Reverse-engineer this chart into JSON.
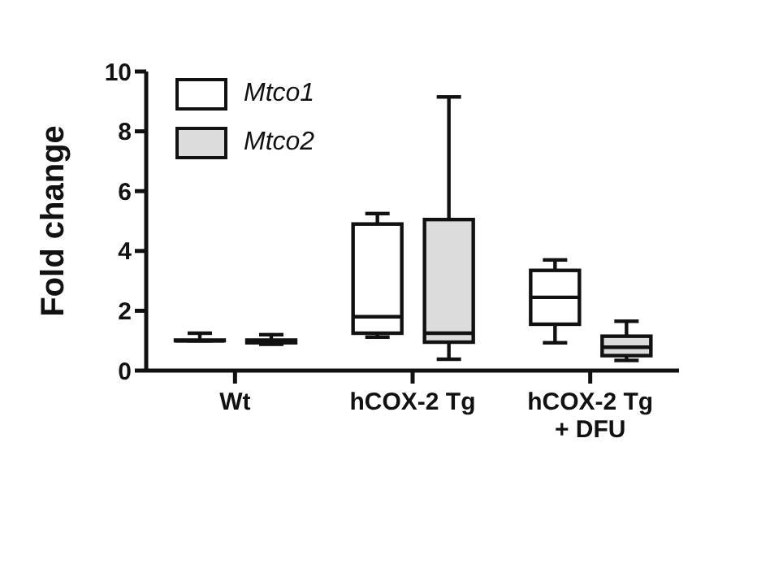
{
  "chart_data": {
    "type": "box",
    "ylabel": "Fold change",
    "categories": [
      "Wt",
      "hCOX-2 Tg",
      "hCOX-2 Tg\n+ DFU"
    ],
    "ylim": [
      0,
      10
    ],
    "yticks": [
      0,
      2,
      4,
      6,
      8,
      10
    ],
    "legend": "top left",
    "grid": false,
    "series": [
      {
        "name": "Mtco1",
        "color": "#ffffff",
        "boxes": [
          {
            "low": 1.0,
            "q1": 1.0,
            "median": 1.0,
            "q3": 1.02,
            "high": 1.25
          },
          {
            "low": 1.12,
            "q1": 1.25,
            "median": 1.8,
            "q3": 4.9,
            "high": 5.25
          },
          {
            "low": 0.93,
            "q1": 1.55,
            "median": 2.45,
            "q3": 3.35,
            "high": 3.7
          }
        ]
      },
      {
        "name": "Mtco2",
        "color": "#dcdcdc",
        "boxes": [
          {
            "low": 0.88,
            "q1": 0.93,
            "median": 1.0,
            "q3": 1.02,
            "high": 1.2
          },
          {
            "low": 0.38,
            "q1": 0.95,
            "median": 1.25,
            "q3": 5.05,
            "high": 9.15
          },
          {
            "low": 0.34,
            "q1": 0.5,
            "median": 0.78,
            "q3": 1.15,
            "high": 1.65
          }
        ]
      }
    ]
  }
}
